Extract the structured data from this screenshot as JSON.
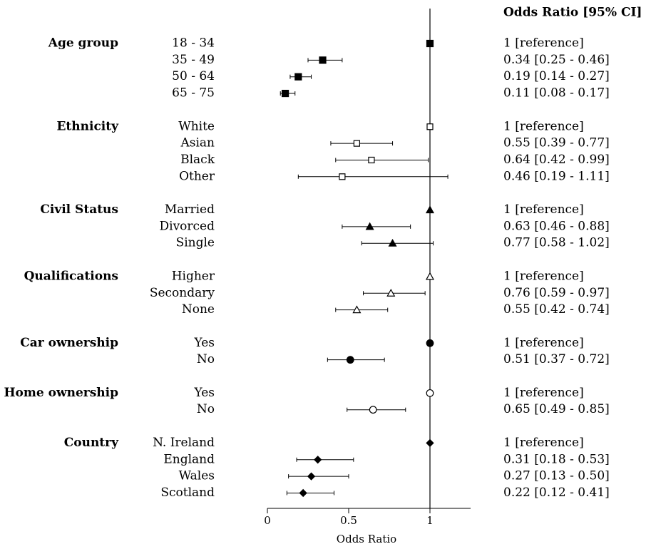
{
  "chart_data": {
    "type": "forest",
    "header": "Odds Ratio [95% CI]",
    "xlabel": "Odds Ratio",
    "xlim": [
      0,
      1.25
    ],
    "xticks": [
      0,
      0.5,
      1
    ],
    "xtick_labels": [
      "0",
      "0.5",
      "1"
    ],
    "reference_line": 1,
    "groups": [
      {
        "name": "Age group",
        "marker": "square",
        "filled": true,
        "rows": [
          {
            "label": "18 - 34",
            "or": 1,
            "lo": null,
            "hi": null,
            "text": "1 [reference]"
          },
          {
            "label": "35 - 49",
            "or": 0.34,
            "lo": 0.25,
            "hi": 0.46,
            "text": "0.34 [0.25 - 0.46]"
          },
          {
            "label": "50 - 64",
            "or": 0.19,
            "lo": 0.14,
            "hi": 0.27,
            "text": "0.19 [0.14 - 0.27]"
          },
          {
            "label": "65 - 75",
            "or": 0.11,
            "lo": 0.08,
            "hi": 0.17,
            "text": "0.11 [0.08 - 0.17]"
          }
        ]
      },
      {
        "name": "Ethnicity",
        "marker": "square",
        "filled": false,
        "rows": [
          {
            "label": "White",
            "or": 1,
            "lo": null,
            "hi": null,
            "text": "1 [reference]"
          },
          {
            "label": "Asian",
            "or": 0.55,
            "lo": 0.39,
            "hi": 0.77,
            "text": "0.55 [0.39 - 0.77]"
          },
          {
            "label": "Black",
            "or": 0.64,
            "lo": 0.42,
            "hi": 0.99,
            "text": "0.64 [0.42 - 0.99]"
          },
          {
            "label": "Other",
            "or": 0.46,
            "lo": 0.19,
            "hi": 1.11,
            "text": "0.46 [0.19 - 1.11]"
          }
        ]
      },
      {
        "name": "Civil Status",
        "marker": "triangle",
        "filled": true,
        "rows": [
          {
            "label": "Married",
            "or": 1,
            "lo": null,
            "hi": null,
            "text": "1 [reference]"
          },
          {
            "label": "Divorced",
            "or": 0.63,
            "lo": 0.46,
            "hi": 0.88,
            "text": "0.63 [0.46 - 0.88]"
          },
          {
            "label": "Single",
            "or": 0.77,
            "lo": 0.58,
            "hi": 1.02,
            "text": "0.77 [0.58 - 1.02]"
          }
        ]
      },
      {
        "name": "Qualifications",
        "marker": "triangle",
        "filled": false,
        "rows": [
          {
            "label": "Higher",
            "or": 1,
            "lo": null,
            "hi": null,
            "text": "1 [reference]"
          },
          {
            "label": "Secondary",
            "or": 0.76,
            "lo": 0.59,
            "hi": 0.97,
            "text": "0.76 [0.59 - 0.97]"
          },
          {
            "label": "None",
            "or": 0.55,
            "lo": 0.42,
            "hi": 0.74,
            "text": "0.55 [0.42 - 0.74]"
          }
        ]
      },
      {
        "name": "Car ownership",
        "marker": "circle",
        "filled": true,
        "rows": [
          {
            "label": "Yes",
            "or": 1,
            "lo": null,
            "hi": null,
            "text": "1 [reference]"
          },
          {
            "label": "No",
            "or": 0.51,
            "lo": 0.37,
            "hi": 0.72,
            "text": "0.51 [0.37 - 0.72]"
          }
        ]
      },
      {
        "name": "Home ownership",
        "marker": "circle",
        "filled": false,
        "rows": [
          {
            "label": "Yes",
            "or": 1,
            "lo": null,
            "hi": null,
            "text": "1 [reference]"
          },
          {
            "label": "No",
            "or": 0.65,
            "lo": 0.49,
            "hi": 0.85,
            "text": "0.65 [0.49 - 0.85]"
          }
        ]
      },
      {
        "name": "Country",
        "marker": "diamond",
        "filled": true,
        "rows": [
          {
            "label": "N. Ireland",
            "or": 1,
            "lo": null,
            "hi": null,
            "text": "1 [reference]"
          },
          {
            "label": "England",
            "or": 0.31,
            "lo": 0.18,
            "hi": 0.53,
            "text": "0.31 [0.18 - 0.53]"
          },
          {
            "label": "Wales",
            "or": 0.27,
            "lo": 0.13,
            "hi": 0.5,
            "text": "0.27 [0.13 - 0.50]"
          },
          {
            "label": "Scotland",
            "or": 0.22,
            "lo": 0.12,
            "hi": 0.41,
            "text": "0.22 [0.12 - 0.41]"
          }
        ]
      }
    ]
  }
}
